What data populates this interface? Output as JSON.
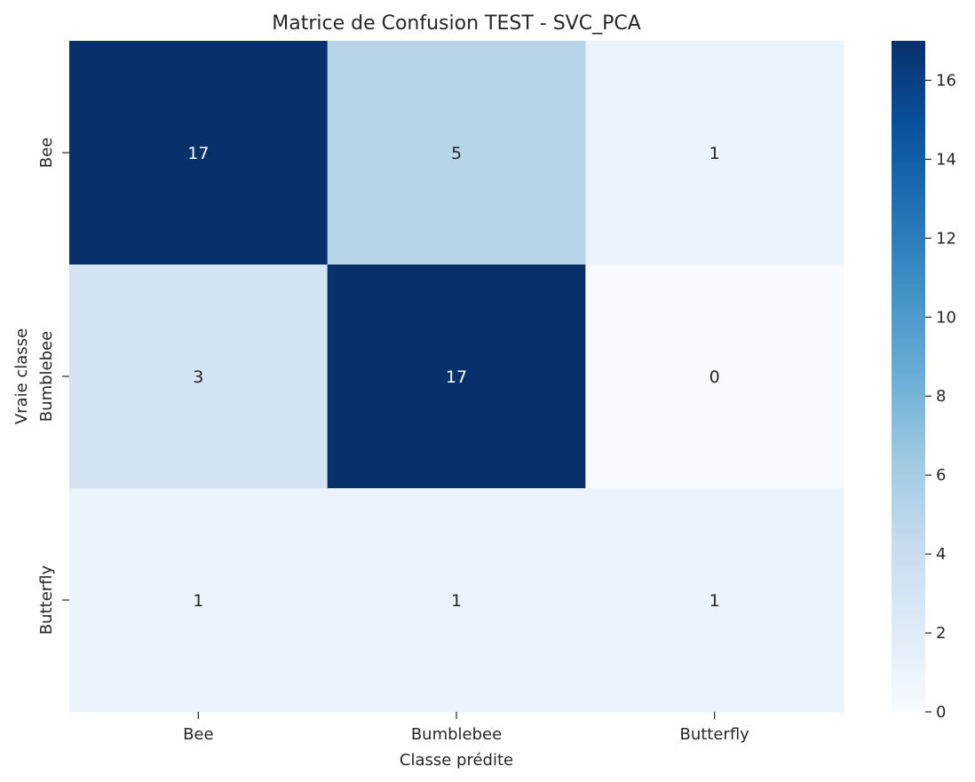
{
  "chart_data": {
    "type": "heatmap",
    "title": "Matrice de Confusion TEST - SVC_PCA",
    "xlabel": "Classe prédite",
    "ylabel": "Vraie classe",
    "x_categories": [
      "Bee",
      "Bumblebee",
      "Butterfly"
    ],
    "y_categories": [
      "Bee",
      "Bumblebee",
      "Butterfly"
    ],
    "values": [
      [
        17,
        5,
        1
      ],
      [
        3,
        17,
        0
      ],
      [
        1,
        1,
        1
      ]
    ],
    "colormap": "Blues",
    "vmin": 0,
    "vmax": 17,
    "colorbar_ticks": [
      "0",
      "2",
      "4",
      "6",
      "8",
      "10",
      "12",
      "14",
      "16"
    ],
    "colorbar_tick_values": [
      0,
      2,
      4,
      6,
      8,
      10,
      12,
      14,
      16
    ]
  }
}
